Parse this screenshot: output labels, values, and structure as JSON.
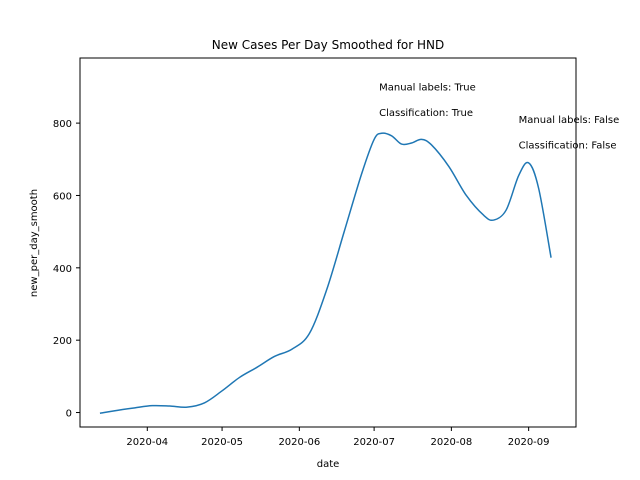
{
  "chart_data": {
    "type": "line",
    "title": "New Cases Per Day Smoothed for HND",
    "xlabel": "date",
    "ylabel": "new_per_day_smooth",
    "x_ticks": [
      "2020-04",
      "2020-05",
      "2020-06",
      "2020-07",
      "2020-08",
      "2020-09"
    ],
    "y_ticks": [
      "0",
      "200",
      "400",
      "600",
      "800"
    ],
    "xlim": [
      "2020-03-05",
      "2020-09-20"
    ],
    "ylim": [
      -40,
      980
    ],
    "grid": false,
    "series": [
      {
        "color": "#1f77b4",
        "x": [
          "2020-03-13",
          "2020-03-20",
          "2020-03-27",
          "2020-04-03",
          "2020-04-10",
          "2020-04-17",
          "2020-04-24",
          "2020-05-01",
          "2020-05-08",
          "2020-05-15",
          "2020-05-22",
          "2020-05-29",
          "2020-06-05",
          "2020-06-12",
          "2020-06-19",
          "2020-06-26",
          "2020-07-01",
          "2020-07-04",
          "2020-07-08",
          "2020-07-12",
          "2020-07-16",
          "2020-07-20",
          "2020-07-24",
          "2020-07-31",
          "2020-08-07",
          "2020-08-14",
          "2020-08-18",
          "2020-08-23",
          "2020-08-28",
          "2020-09-01",
          "2020-09-05",
          "2020-09-10"
        ],
        "y": [
          -2,
          6,
          13,
          19,
          18,
          15,
          27,
          60,
          97,
          125,
          155,
          175,
          218,
          340,
          500,
          660,
          755,
          772,
          765,
          742,
          745,
          755,
          740,
          680,
          600,
          545,
          532,
          560,
          655,
          690,
          620,
          428
        ]
      }
    ],
    "annotations": [
      {
        "text": "Manual labels: True",
        "x": "2020-07-03",
        "y": 890
      },
      {
        "text": "Classification: True",
        "x": "2020-07-03",
        "y": 820
      },
      {
        "text": "Manual labels: False",
        "x": "2020-08-28",
        "y": 800
      },
      {
        "text": "Classification: False",
        "x": "2020-08-28",
        "y": 730
      }
    ]
  }
}
